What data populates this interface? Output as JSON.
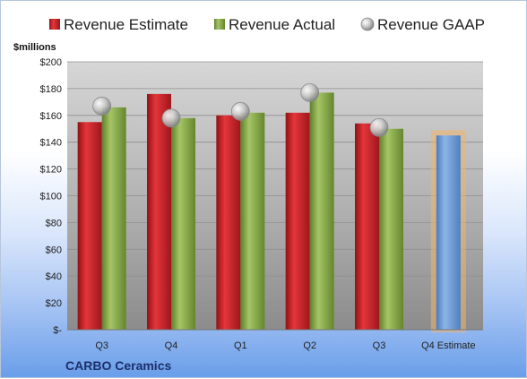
{
  "chart_data": {
    "type": "bar",
    "title": "",
    "ylabel": "$millions",
    "xlabel": "",
    "company": "CARBO Ceramics",
    "ylim": [
      0,
      200
    ],
    "ytick_step": 20,
    "ytick_labels": [
      "$-",
      "$20",
      "$40",
      "$60",
      "$80",
      "$100",
      "$120",
      "$140",
      "$160",
      "$180",
      "$200"
    ],
    "categories": [
      "Q3",
      "Q4",
      "Q1",
      "Q2",
      "Q3",
      "Q4 Estimate"
    ],
    "legend_position": "top",
    "grid": true,
    "series": [
      {
        "name": "Revenue Estimate",
        "kind": "bar",
        "color": "#c0262c",
        "values": [
          155,
          176,
          160,
          162,
          154,
          null
        ]
      },
      {
        "name": "Revenue Actual",
        "kind": "bar",
        "color": "#8aab4f",
        "values": [
          166,
          158,
          162,
          177,
          150,
          null
        ]
      },
      {
        "name": "Revenue GAAP",
        "kind": "marker",
        "color": "#bdbdbd",
        "values": [
          167,
          158,
          163,
          177,
          151,
          null
        ]
      },
      {
        "name": "Q4 Estimate",
        "kind": "bar",
        "color": "#6f9fd8",
        "glow": "#f2b46a",
        "values": [
          null,
          null,
          null,
          null,
          null,
          145
        ]
      }
    ]
  }
}
